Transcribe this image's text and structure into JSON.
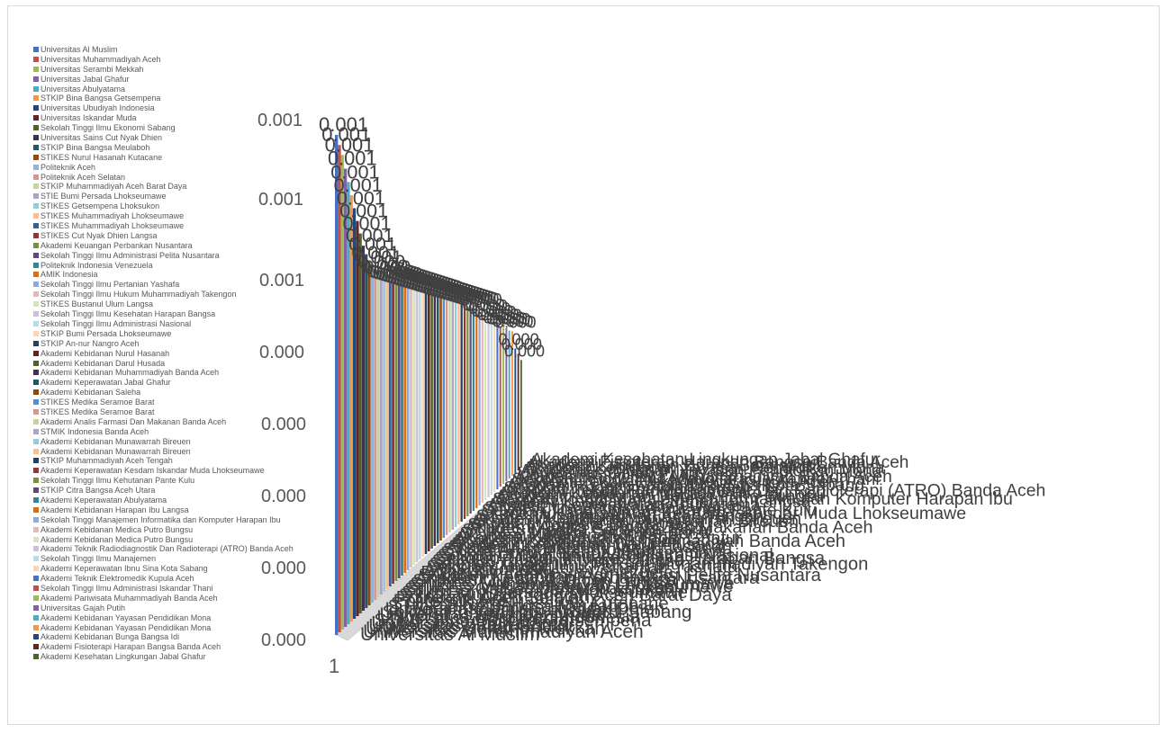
{
  "chart_data": {
    "type": "bar",
    "style": "3d-column",
    "title": "",
    "xlabel": "",
    "ylabel": "",
    "x_category_label": "1",
    "y_tick_labels": [
      "0.000",
      "0.000",
      "0.000",
      "0.000",
      "0.000",
      "0.001",
      "0.001",
      "0.001"
    ],
    "legend_position": "left",
    "grid": false,
    "series": [
      {
        "name": "Universitas Al Muslim",
        "value": 0.00125,
        "color": "#4472c4"
      },
      {
        "name": "Universitas Muhammadiyah Aceh",
        "value": 0.00123,
        "color": "#c0504d"
      },
      {
        "name": "Universitas Serambi Mekkah",
        "value": 0.00121,
        "color": "#9bbb59"
      },
      {
        "name": "Universitas Jabal Ghafur",
        "value": 0.00118,
        "color": "#8064a2"
      },
      {
        "name": "Universitas Abulyatama",
        "value": 0.00115,
        "color": "#4bacc6"
      },
      {
        "name": "STKIP Bina Bangsa Getsempena",
        "value": 0.00112,
        "color": "#f79646"
      },
      {
        "name": "Universitas Ubudiyah Indonesia",
        "value": 0.00109,
        "color": "#1f497d"
      },
      {
        "name": "Universitas Iskandar Muda",
        "value": 0.00106,
        "color": "#632523"
      },
      {
        "name": "Sekolah Tinggi Ilmu Ekonomi Sabang",
        "value": 0.00103,
        "color": "#4f6228"
      },
      {
        "name": "Universitas Sains Cut Nyak Dhien",
        "value": 0.001,
        "color": "#403151"
      },
      {
        "name": "STKIP Bina Bangsa Meulaboh",
        "value": 0.00098,
        "color": "#215968"
      },
      {
        "name": "STIKES Nurul Hasanah Kutacane",
        "value": 0.00096,
        "color": "#984807"
      },
      {
        "name": "Politeknik Aceh",
        "value": 0.00095,
        "color": "#95b3d7"
      },
      {
        "name": "Politeknik Aceh Selatan",
        "value": 0.00094,
        "color": "#da9694"
      },
      {
        "name": "STKIP Muhammadiyah Aceh Barat Daya",
        "value": 0.00093,
        "color": "#c4d79b"
      },
      {
        "name": "STIE Bumi Persada Lhokseumawe",
        "value": 0.00093,
        "color": "#b1a0c7"
      },
      {
        "name": "STIKES Getsempena Lhoksukon",
        "value": 0.00092,
        "color": "#92cddc"
      },
      {
        "name": "STIKES Muhammadiyah Lhokseumawe",
        "value": 0.00092,
        "color": "#fabf8f"
      },
      {
        "name": "STIKES Muhammadiyah Lhokseumawe",
        "value": 0.00092,
        "color": "#366092"
      },
      {
        "name": "STIKES Cut Nyak Dhien Langsa",
        "value": 0.00092,
        "color": "#963634"
      },
      {
        "name": "Akademi Keuangan Perbankan Nusantara",
        "value": 0.00092,
        "color": "#76933c"
      },
      {
        "name": "Sekolah Tinggi Ilmu Administrasi Pelita Nusantara",
        "value": 0.00092,
        "color": "#60497a"
      },
      {
        "name": "Politeknik Indonesia Venezuela",
        "value": 0.00092,
        "color": "#31869b"
      },
      {
        "name": "AMIK Indonesia",
        "value": 0.00092,
        "color": "#e26b0a"
      },
      {
        "name": "Sekolah Tinggi Ilmu Pertanian Yashafa",
        "value": 0.00092,
        "color": "#8ea9db"
      },
      {
        "name": "Sekolah Tinggi Ilmu Hukum Muhammadiyah Takengon",
        "value": 0.00092,
        "color": "#e6b8b7"
      },
      {
        "name": "STIKES Bustanul Ulum Langsa",
        "value": 0.00092,
        "color": "#d8e4bc"
      },
      {
        "name": "Sekolah Tinggi Ilmu Kesehatan Harapan Bangsa",
        "value": 0.00092,
        "color": "#ccc0da"
      },
      {
        "name": "Sekolah Tinggi Ilmu Administrasi Nasional",
        "value": 0.00092,
        "color": "#b7dee8"
      },
      {
        "name": "STKIP Bumi Persada Lhokseumawe",
        "value": 0.00092,
        "color": "#fcd5b4"
      },
      {
        "name": "STKIP An-nur Nangro Aceh",
        "value": 0.00092,
        "color": "#254061"
      },
      {
        "name": "Akademi Kebidanan Nurul Hasanah",
        "value": 0.00092,
        "color": "#632523"
      },
      {
        "name": "Akademi Kebidanan Darul Husada",
        "value": 0.00092,
        "color": "#4f6228"
      },
      {
        "name": "Akademi Kebidanan Muhammadiyah Banda Aceh",
        "value": 0.00092,
        "color": "#3f3151"
      },
      {
        "name": "Akademi Keperawatan Jabal Ghafur",
        "value": 0.00092,
        "color": "#205867"
      },
      {
        "name": "Akademi Kebidanan Saleha",
        "value": 0.00092,
        "color": "#974806"
      },
      {
        "name": "STIKES Medika Seramoe Barat",
        "value": 0.00092,
        "color": "#538dd5"
      },
      {
        "name": "STIKES Medika Seramoe Barat",
        "value": 0.00092,
        "color": "#da9694"
      },
      {
        "name": "Akademi Analis Farmasi Dan Makanan Banda Aceh",
        "value": 0.00092,
        "color": "#c4d79b"
      },
      {
        "name": "STMIK Indonesia Banda Aceh",
        "value": 0.00092,
        "color": "#b1a0c7"
      },
      {
        "name": "Akademi Kebidanan Munawarrah Bireuen",
        "value": 0.00092,
        "color": "#92cddc"
      },
      {
        "name": "Akademi Kebidanan Munawarrah Bireuen",
        "value": 0.00092,
        "color": "#fabf8f"
      },
      {
        "name": "STKIP Muhammadiyah Aceh Tengah",
        "value": 0.00092,
        "color": "#244062"
      },
      {
        "name": "Akademi Keperawatan Kesdam Iskandar Muda Lhokseumawe",
        "value": 0.00092,
        "color": "#963634"
      },
      {
        "name": "Sekolah Tinggi Ilmu Kehutanan Pante Kulu",
        "value": 0.00092,
        "color": "#76933c"
      },
      {
        "name": "STKIP Citra Bangsa Aceh Utara",
        "value": 0.00092,
        "color": "#60497a"
      },
      {
        "name": "Akademi Keperawatan Abulyatama",
        "value": 0.00092,
        "color": "#31869b"
      },
      {
        "name": "Akademi Kebidanan Harapan Ibu Langsa",
        "value": 0.00092,
        "color": "#e26b0a"
      },
      {
        "name": "Sekolah Tinggi Manajemen Informatika dan Komputer Harapan Ibu",
        "value": 0.0009,
        "color": "#8ea9db"
      },
      {
        "name": "Akademi Kebidanan Medica Putro Bungsu",
        "value": 0.0009,
        "color": "#e6b8b7"
      },
      {
        "name": "Akademi Kebidanan Medica Putro Bungsu",
        "value": 0.00089,
        "color": "#d8e4bc"
      },
      {
        "name": "Akademi Teknik Radiodiagnostik Dan Radioterapi (ATRO) Banda Aceh",
        "value": 0.00088,
        "color": "#ccc0da"
      },
      {
        "name": "Sekolah Tinggi Ilmu Manajemen",
        "value": 0.00088,
        "color": "#b7dee8"
      },
      {
        "name": "Akademi Keperawatan Ibnu Sina Kota Sabang",
        "value": 0.00087,
        "color": "#fcd5b4"
      },
      {
        "name": "Akademi Teknik Elektromedik Kupula Aceh",
        "value": 0.00087,
        "color": "#4472c4"
      },
      {
        "name": "Sekolah Tinggi Ilmu Administrasi Iskandar Thani",
        "value": 0.00086,
        "color": "#c0504d"
      },
      {
        "name": "Akademi Pariwisata Muhammadiyah Banda Aceh",
        "value": 0.00086,
        "color": "#9bbb59"
      },
      {
        "name": "Universitas Gajah Putih",
        "value": 0.00086,
        "color": "#8064a2"
      },
      {
        "name": "Akademi Kebidanan Yayasan Pendidikan Mona",
        "value": 0.00085,
        "color": "#4bacc6"
      },
      {
        "name": "Akademi Kebidanan Yayasan Pendidikan Mona",
        "value": 0.00085,
        "color": "#f79646"
      },
      {
        "name": "Akademi Kebidanan Bunga Bangsa Idi",
        "value": 0.00075,
        "color": "#1f497d"
      },
      {
        "name": "Akademi Fisioterapi Harapan Bangsa Banda Aceh",
        "value": 0.00072,
        "color": "#632523"
      },
      {
        "name": "Akademi Kesehatan Lingkungan Jabal Ghafur",
        "value": 0.00068,
        "color": "#4f6228"
      }
    ]
  }
}
